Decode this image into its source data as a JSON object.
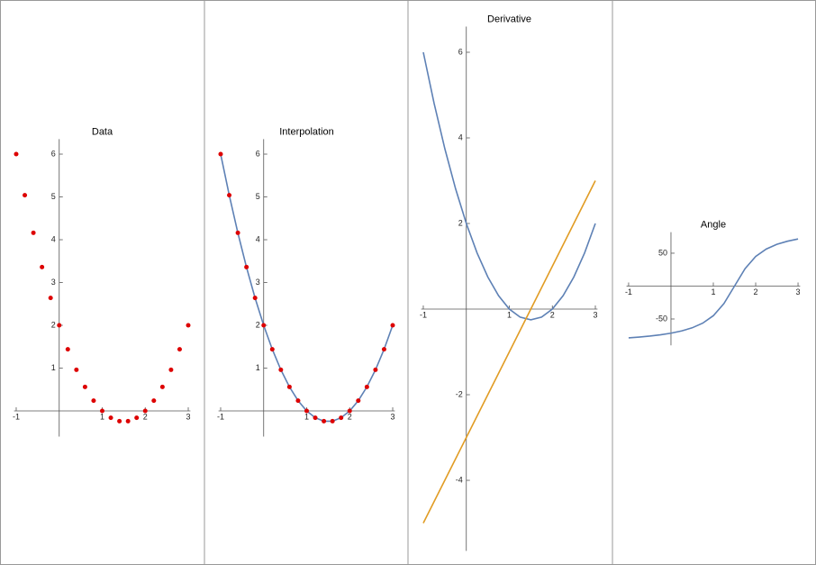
{
  "chart_data": [
    {
      "type": "scatter",
      "title": "Data",
      "x": [
        -1,
        -0.8,
        -0.6,
        -0.4,
        -0.2,
        0,
        0.2,
        0.4,
        0.6,
        0.8,
        1,
        1.2,
        1.4,
        1.6,
        1.8,
        2,
        2.2,
        2.4,
        2.6,
        2.8,
        3
      ],
      "series": [
        {
          "type": "scatter",
          "color": "#dd0000",
          "values": [
            6,
            5.04,
            4.16,
            3.36,
            2.64,
            2,
            1.44,
            0.96,
            0.56,
            0.24,
            0,
            -0.16,
            -0.24,
            -0.24,
            -0.16,
            0,
            0.24,
            0.56,
            0.96,
            1.44,
            2
          ]
        }
      ],
      "xlim": [
        -1.05,
        3.05
      ],
      "ylim": [
        -0.6,
        6.35
      ],
      "xticks": [
        -1,
        1,
        2,
        3
      ],
      "yticks": [
        1,
        2,
        3,
        4,
        5,
        6
      ]
    },
    {
      "type": "line",
      "title": "Interpolation",
      "x": [
        -1,
        -0.8,
        -0.6,
        -0.4,
        -0.2,
        0,
        0.2,
        0.4,
        0.6,
        0.8,
        1,
        1.2,
        1.4,
        1.6,
        1.8,
        2,
        2.2,
        2.4,
        2.6,
        2.8,
        3
      ],
      "series": [
        {
          "type": "line",
          "color": "#5e81b5",
          "values": [
            6,
            5.04,
            4.16,
            3.36,
            2.64,
            2,
            1.44,
            0.96,
            0.56,
            0.24,
            0,
            -0.16,
            -0.24,
            -0.24,
            -0.16,
            0,
            0.24,
            0.56,
            0.96,
            1.44,
            2
          ]
        },
        {
          "type": "scatter",
          "color": "#dd0000",
          "values": [
            6,
            5.04,
            4.16,
            3.36,
            2.64,
            2,
            1.44,
            0.96,
            0.56,
            0.24,
            0,
            -0.16,
            -0.24,
            -0.24,
            -0.16,
            0,
            0.24,
            0.56,
            0.96,
            1.44,
            2
          ]
        }
      ],
      "xlim": [
        -1.05,
        3.05
      ],
      "ylim": [
        -0.6,
        6.35
      ],
      "xticks": [
        -1,
        1,
        2,
        3
      ],
      "yticks": [
        1,
        2,
        3,
        4,
        5,
        6
      ]
    },
    {
      "type": "line",
      "title": "Derivative",
      "x": [
        -1,
        -0.75,
        -0.5,
        -0.25,
        0,
        0.25,
        0.5,
        0.75,
        1,
        1.25,
        1.5,
        1.75,
        2,
        2.25,
        2.5,
        2.75,
        3
      ],
      "series": [
        {
          "type": "line",
          "color": "#5e81b5",
          "values": [
            6,
            4.8125,
            3.75,
            2.8125,
            2,
            1.3125,
            0.75,
            0.3125,
            0,
            -0.1875,
            -0.25,
            -0.1875,
            0,
            0.3125,
            0.75,
            1.3125,
            2
          ]
        },
        {
          "type": "line",
          "color": "#e19c24",
          "values": [
            -5,
            -4.5,
            -4,
            -3.5,
            -3,
            -2.5,
            -2,
            -1.5,
            -1,
            -0.5,
            0,
            0.5,
            1,
            1.5,
            2,
            2.5,
            3
          ]
        }
      ],
      "xlim": [
        -1.05,
        3.05
      ],
      "ylim": [
        -5.65,
        6.6
      ],
      "xticks": [
        -1,
        1,
        2,
        3
      ],
      "yticks": [
        -4,
        -2,
        2,
        4,
        6
      ]
    },
    {
      "type": "line",
      "title": "Angle",
      "x": [
        -1,
        -0.75,
        -0.5,
        -0.25,
        0,
        0.25,
        0.5,
        0.75,
        1,
        1.25,
        1.5,
        1.75,
        2,
        2.25,
        2.5,
        2.75,
        3
      ],
      "series": [
        {
          "type": "line",
          "color": "#5e81b5",
          "values": [
            -78.69,
            -77.47,
            -75.96,
            -74.05,
            -71.57,
            -68.2,
            -63.43,
            -56.31,
            -45,
            -26.57,
            0,
            26.57,
            45,
            56.31,
            63.43,
            68.2,
            71.57
          ]
        }
      ],
      "xlim": [
        -1.05,
        3.05
      ],
      "ylim": [
        -90,
        82
      ],
      "xticks": [
        -1,
        1,
        2,
        3
      ],
      "yticks": [
        -50,
        50
      ]
    }
  ]
}
